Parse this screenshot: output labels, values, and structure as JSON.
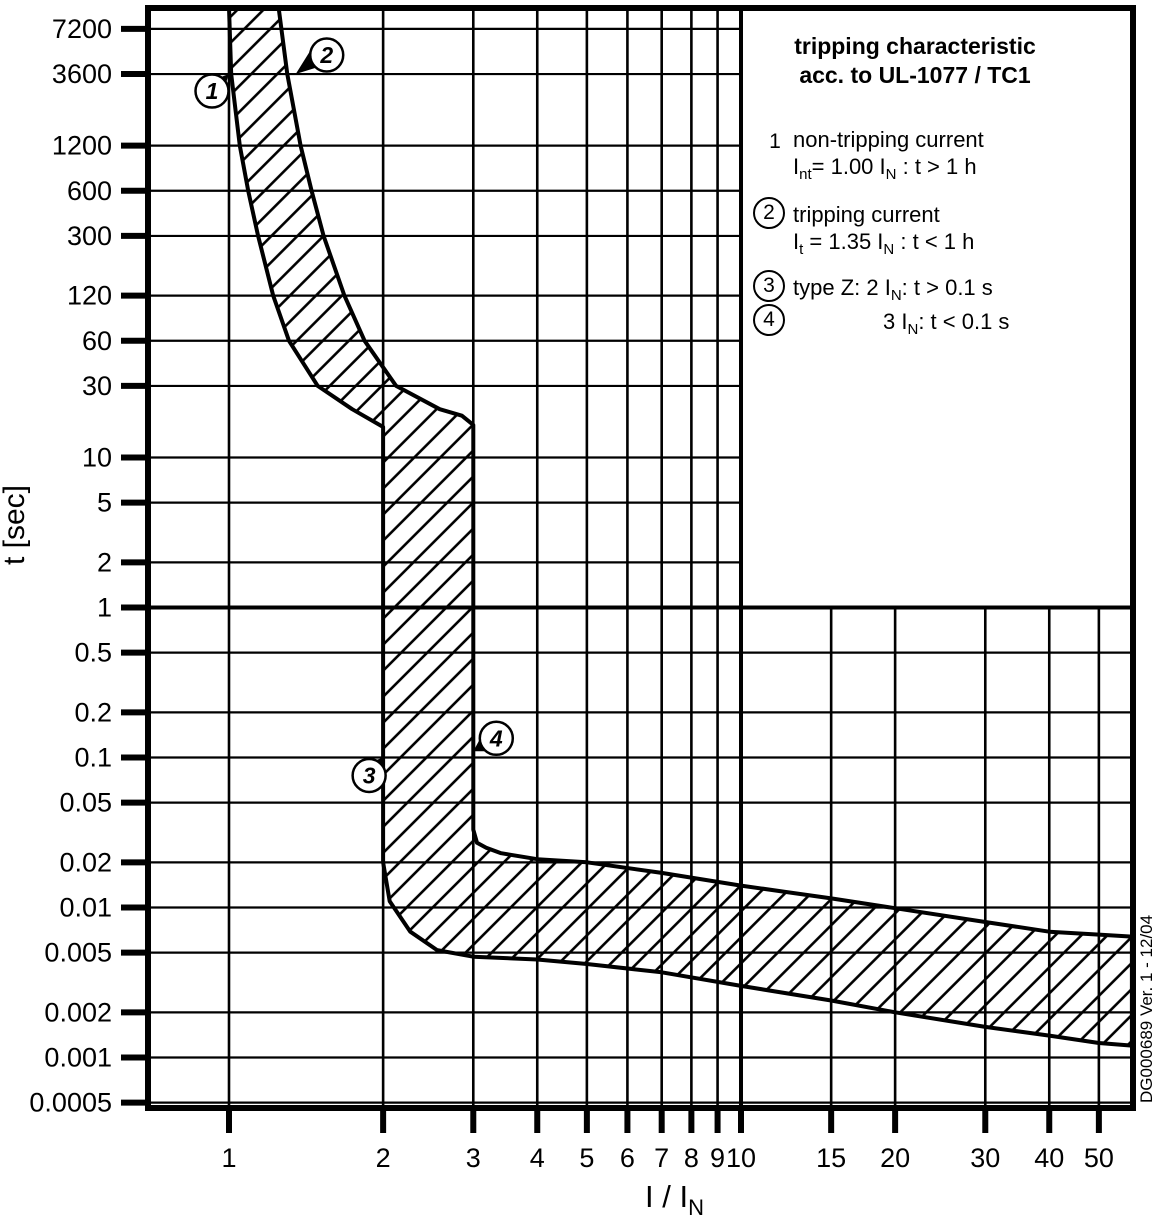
{
  "page": {
    "background": "#ffffff",
    "ink": "#000000"
  },
  "legend": {
    "title_lines": [
      "tripping characteristic",
      "acc. to UL-1077 / TC1"
    ],
    "items": [
      {
        "marker": "1",
        "circled": false,
        "rows": [
          [
            {
              "t": "non-tripping current"
            }
          ],
          [
            {
              "t": "I"
            },
            {
              "s": "nt"
            },
            {
              "t": "= 1.00 I"
            },
            {
              "s": "N"
            },
            {
              "t": " : t > 1 h"
            }
          ]
        ]
      },
      {
        "marker": "2",
        "circled": true,
        "rows": [
          [
            {
              "t": "tripping current"
            }
          ],
          [
            {
              "t": "I"
            },
            {
              "s": "t"
            },
            {
              "t": " = 1.35 I"
            },
            {
              "s": "N"
            },
            {
              "t": " : t < 1 h"
            }
          ]
        ]
      },
      {
        "marker": "3",
        "circled": true,
        "rows": [
          [
            {
              "t": "type Z:  2 I"
            },
            {
              "s": "N"
            },
            {
              "t": ": t > 0.1 s"
            }
          ]
        ]
      },
      {
        "marker": "4",
        "circled": true,
        "rows": [
          [
            {
              "t": "3 I"
            },
            {
              "s": "N"
            },
            {
              "t": ": t < 0.1 s"
            }
          ]
        ]
      }
    ]
  },
  "watermark": "DG000689  Ver. 1 - 12/04",
  "chart_data": {
    "type": "area",
    "title": "tripping characteristic acc. to UL-1077 / TC1",
    "xlabel": "I / I_N",
    "ylabel": "t [sec]",
    "x_scale": "log",
    "y_scale": "log",
    "xlim": [
      0.7,
      58
    ],
    "ylim": [
      0.00047,
      10000
    ],
    "grid": true,
    "x_ticks": [
      "1",
      "2",
      "3",
      "4",
      "5",
      "6",
      "7",
      "8",
      "9",
      "10",
      "15",
      "20",
      "30",
      "40",
      "50"
    ],
    "y_ticks": [
      "7200",
      "3600",
      "1200",
      "600",
      "300",
      "120",
      "60",
      "30",
      "10",
      "5",
      "2",
      "1",
      "0.5",
      "0.2",
      "0.1",
      "0.05",
      "0.02",
      "0.01",
      "0.005",
      "0.002",
      "0.001",
      "0.0005"
    ],
    "band": {
      "name": "tripping characteristic band (hatched region between non-tripping and tripping limits)",
      "lower_boundary": [
        [
          1.0,
          10000
        ],
        [
          1.01,
          3600
        ],
        [
          1.05,
          1200
        ],
        [
          1.09,
          600
        ],
        [
          1.14,
          300
        ],
        [
          1.22,
          120
        ],
        [
          1.31,
          60
        ],
        [
          1.49,
          30
        ],
        [
          1.74,
          21
        ],
        [
          2.0,
          16
        ],
        [
          2.0,
          0.02
        ],
        [
          2.06,
          0.011
        ],
        [
          2.26,
          0.0069
        ],
        [
          2.55,
          0.0052
        ],
        [
          3.0,
          0.0047
        ],
        [
          4.0,
          0.0045
        ],
        [
          5.0,
          0.0042
        ],
        [
          7.0,
          0.0037
        ],
        [
          10,
          0.003
        ],
        [
          15,
          0.0024
        ],
        [
          20,
          0.002
        ],
        [
          30,
          0.0016
        ],
        [
          40,
          0.0014
        ],
        [
          50,
          0.00125
        ],
        [
          58,
          0.0012
        ]
      ],
      "upper_boundary": [
        [
          1.25,
          10000
        ],
        [
          1.3,
          3600
        ],
        [
          1.38,
          1200
        ],
        [
          1.45,
          600
        ],
        [
          1.53,
          300
        ],
        [
          1.68,
          120
        ],
        [
          1.84,
          60
        ],
        [
          2.12,
          30
        ],
        [
          2.58,
          21
        ],
        [
          2.85,
          19
        ],
        [
          3.0,
          16.5
        ],
        [
          3.0,
          0.033
        ],
        [
          3.05,
          0.027
        ],
        [
          3.18,
          0.025
        ],
        [
          3.4,
          0.023
        ],
        [
          4.0,
          0.021
        ],
        [
          5.0,
          0.02
        ],
        [
          7.0,
          0.017
        ],
        [
          10,
          0.014
        ],
        [
          15,
          0.0115
        ],
        [
          20,
          0.0099
        ],
        [
          30,
          0.008
        ],
        [
          40,
          0.0069
        ],
        [
          50,
          0.0066
        ],
        [
          58,
          0.0064
        ]
      ]
    },
    "annotations": [
      {
        "label": "1",
        "style": "italic-circled",
        "target": [
          1.0,
          3600
        ],
        "note": "non-tripping current Int = 1.00 IN : t > 1 h"
      },
      {
        "label": "2",
        "style": "italic-circled",
        "target": [
          1.35,
          3600
        ],
        "note": "tripping current It = 1.35 IN : t < 1 h"
      },
      {
        "label": "3",
        "style": "italic-circled",
        "target": [
          2.0,
          0.1
        ],
        "note": "type Z: 2 IN: t > 0.1 s"
      },
      {
        "label": "4",
        "style": "italic-circled",
        "target": [
          3.0,
          0.11
        ],
        "note": "3 IN: t < 0.1 s"
      }
    ]
  }
}
